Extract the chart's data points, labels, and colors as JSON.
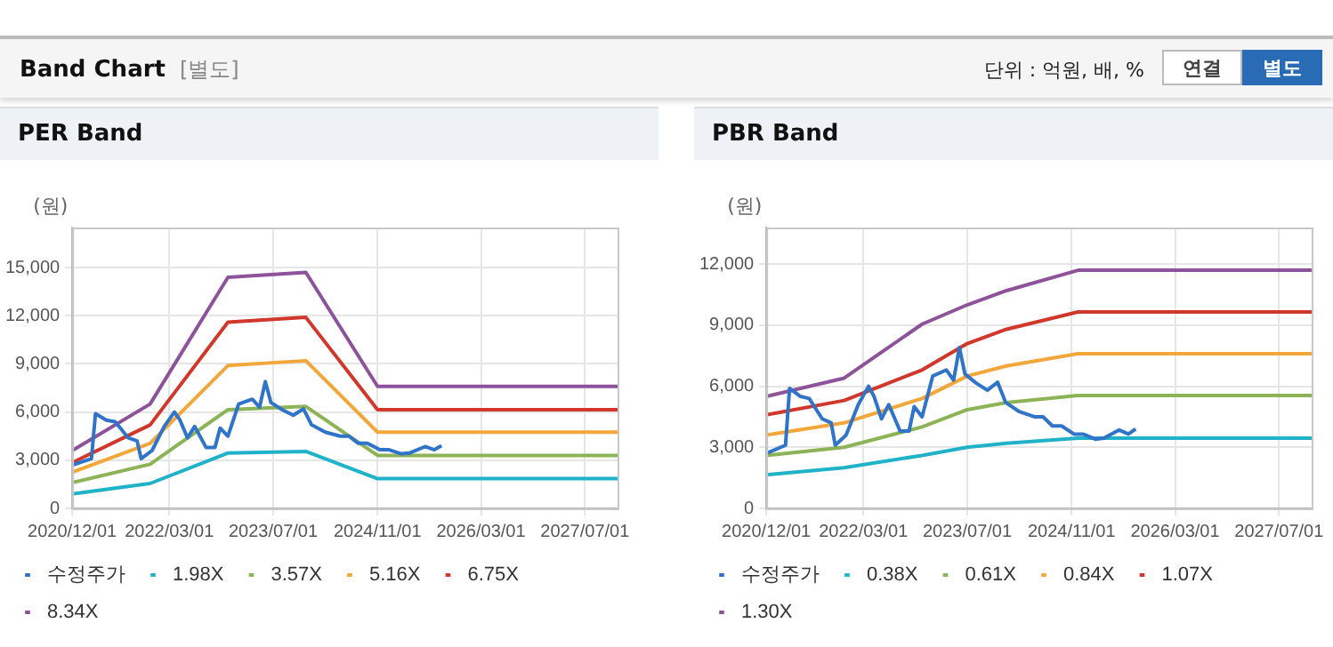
{
  "chart_data": [
    {
      "type": "other",
      "title": "Band Chart",
      "subtitle": "[별도]",
      "annotations": [
        "단위 : 억원, 배, %",
        "연결",
        "별도"
      ]
    },
    {
      "type": "line",
      "title": "PER Band",
      "ylabel": "(원)",
      "xlim": [
        "2020-12-01",
        "2027-12-01"
      ],
      "xticks": [
        {
          "value": "2020-12-01",
          "label": "2020/12/01"
        },
        {
          "value": "2022-03-01",
          "label": "2022/03/01"
        },
        {
          "value": "2023-07-01",
          "label": "2023/07/01"
        },
        {
          "value": "2024-11-01",
          "label": "2024/11/01"
        },
        {
          "value": "2026-03-01",
          "label": "2026/03/01"
        },
        {
          "value": "2027-07-01",
          "label": "2027/07/01"
        }
      ],
      "ylim": [
        0,
        17500
      ],
      "yticks": [
        {
          "value": 0,
          "label": "0"
        },
        {
          "value": 3000,
          "label": "3,000"
        },
        {
          "value": 6000,
          "label": "6,000"
        },
        {
          "value": 9000,
          "label": "9,000"
        },
        {
          "value": 12000,
          "label": "12,000"
        },
        {
          "value": 15000,
          "label": "15,000"
        }
      ],
      "grid": true,
      "legend": "bottom",
      "marker": "none",
      "line_style": "solid",
      "series": [
        {
          "name": "수정주가",
          "color": "#2f74c8",
          "x": [
            "2020-12-01",
            "2021-03-01",
            "2021-03-20",
            "2021-05-10",
            "2021-06-20",
            "2021-08-20",
            "2021-10-01",
            "2021-10-20",
            "2021-12-10",
            "2022-02-05",
            "2022-03-25",
            "2022-04-20",
            "2022-05-25",
            "2022-06-28",
            "2022-08-20",
            "2022-10-01",
            "2022-10-25",
            "2022-12-01",
            "2023-01-20",
            "2023-03-25",
            "2023-04-28",
            "2023-05-25",
            "2023-06-20",
            "2023-08-12",
            "2023-10-03",
            "2023-11-20",
            "2023-12-28",
            "2024-03-01",
            "2024-05-10",
            "2024-06-20",
            "2024-08-03",
            "2024-09-15",
            "2024-11-12",
            "2024-12-25",
            "2025-02-20",
            "2025-04-01",
            "2025-06-12",
            "2025-07-25",
            "2025-08-28"
          ],
          "values": [
            2700,
            3100,
            5900,
            5500,
            5400,
            4400,
            4200,
            3100,
            3600,
            5100,
            6000,
            5500,
            4400,
            5100,
            3800,
            3800,
            5000,
            4500,
            6500,
            6800,
            6300,
            7900,
            6600,
            6150,
            5800,
            6200,
            5200,
            4750,
            4500,
            4500,
            4050,
            4050,
            3650,
            3650,
            3400,
            3450,
            3850,
            3650,
            3900
          ]
        },
        {
          "name": "1.98X",
          "color": "#1fb2c8",
          "x": [
            "2020-12-01",
            "2021-12-01",
            "2022-12-01",
            "2023-12-01",
            "2024-11-01",
            "2027-12-01"
          ],
          "values": [
            900,
            1550,
            3450,
            3550,
            1850,
            1850
          ]
        },
        {
          "name": "3.57X",
          "color": "#8cb356",
          "x": [
            "2020-12-01",
            "2021-12-01",
            "2022-12-01",
            "2023-12-01",
            "2024-11-01",
            "2027-12-01"
          ],
          "values": [
            1600,
            2750,
            6150,
            6350,
            3300,
            3300
          ]
        },
        {
          "name": "5.16X",
          "color": "#f3a73b",
          "x": [
            "2020-12-01",
            "2021-12-01",
            "2022-12-01",
            "2023-12-01",
            "2024-11-01",
            "2027-12-01"
          ],
          "values": [
            2250,
            4050,
            8900,
            9200,
            4750,
            4750
          ]
        },
        {
          "name": "6.75X",
          "color": "#d2372c",
          "x": [
            "2020-12-01",
            "2021-12-01",
            "2022-12-01",
            "2023-12-01",
            "2024-11-01",
            "2027-12-01"
          ],
          "values": [
            2850,
            5200,
            11600,
            11900,
            6150,
            6150
          ]
        },
        {
          "name": "8.34X",
          "color": "#8e529b",
          "x": [
            "2020-12-01",
            "2021-12-01",
            "2022-12-01",
            "2023-12-01",
            "2024-11-01",
            "2027-12-01"
          ],
          "values": [
            3600,
            6500,
            14400,
            14700,
            7600,
            7600
          ]
        }
      ]
    },
    {
      "type": "line",
      "title": "PBR Band",
      "ylabel": "(원)",
      "xlim": [
        "2020-12-01",
        "2027-12-01"
      ],
      "xticks": [
        {
          "value": "2020-12-01",
          "label": "2020/12/01"
        },
        {
          "value": "2022-03-01",
          "label": "2022/03/01"
        },
        {
          "value": "2023-07-01",
          "label": "2023/07/01"
        },
        {
          "value": "2024-11-01",
          "label": "2024/11/01"
        },
        {
          "value": "2026-03-01",
          "label": "2026/03/01"
        },
        {
          "value": "2027-07-01",
          "label": "2027/07/01"
        }
      ],
      "ylim": [
        0,
        13800
      ],
      "yticks": [
        {
          "value": 0,
          "label": "0"
        },
        {
          "value": 3000,
          "label": "3,000"
        },
        {
          "value": 6000,
          "label": "6,000"
        },
        {
          "value": 9000,
          "label": "9,000"
        },
        {
          "value": 12000,
          "label": "12,000"
        }
      ],
      "grid": true,
      "legend": "bottom",
      "marker": "none",
      "line_style": "solid",
      "series": [
        {
          "name": "수정주가",
          "color": "#2f74c8",
          "x": [
            "2020-12-01",
            "2021-03-01",
            "2021-03-20",
            "2021-05-10",
            "2021-06-20",
            "2021-08-20",
            "2021-10-01",
            "2021-10-20",
            "2021-12-10",
            "2022-02-05",
            "2022-03-25",
            "2022-04-20",
            "2022-05-25",
            "2022-06-28",
            "2022-08-20",
            "2022-10-01",
            "2022-10-25",
            "2022-12-01",
            "2023-01-20",
            "2023-03-25",
            "2023-04-28",
            "2023-05-25",
            "2023-06-20",
            "2023-08-12",
            "2023-10-03",
            "2023-11-20",
            "2023-12-28",
            "2024-03-01",
            "2024-05-10",
            "2024-06-20",
            "2024-08-03",
            "2024-09-15",
            "2024-11-12",
            "2024-12-25",
            "2025-02-20",
            "2025-04-01",
            "2025-06-12",
            "2025-07-25",
            "2025-08-28"
          ],
          "values": [
            2700,
            3100,
            5900,
            5500,
            5400,
            4400,
            4200,
            3100,
            3600,
            5100,
            6000,
            5500,
            4400,
            5100,
            3800,
            3800,
            5000,
            4500,
            6500,
            6800,
            6300,
            7900,
            6600,
            6150,
            5800,
            6200,
            5200,
            4750,
            4500,
            4500,
            4050,
            4050,
            3650,
            3650,
            3400,
            3450,
            3850,
            3650,
            3900
          ]
        },
        {
          "name": "0.38X",
          "color": "#1fb2c8",
          "x": [
            "2020-12-01",
            "2021-12-01",
            "2022-12-01",
            "2023-07-01",
            "2024-01-01",
            "2024-12-01",
            "2027-12-01"
          ],
          "values": [
            1650,
            2000,
            2600,
            3000,
            3200,
            3450,
            3450
          ]
        },
        {
          "name": "0.61X",
          "color": "#8cb356",
          "x": [
            "2020-12-01",
            "2021-12-01",
            "2022-12-01",
            "2023-07-01",
            "2024-01-01",
            "2024-12-01",
            "2027-12-01"
          ],
          "values": [
            2600,
            3000,
            4000,
            4850,
            5200,
            5550,
            5550
          ]
        },
        {
          "name": "0.84X",
          "color": "#f3a73b",
          "x": [
            "2020-12-01",
            "2021-12-01",
            "2022-12-01",
            "2023-07-01",
            "2024-01-01",
            "2024-12-01",
            "2027-12-01"
          ],
          "values": [
            3600,
            4200,
            5400,
            6500,
            7000,
            7600,
            7600
          ]
        },
        {
          "name": "1.07X",
          "color": "#d2372c",
          "x": [
            "2020-12-01",
            "2021-12-01",
            "2022-12-01",
            "2023-07-01",
            "2024-01-01",
            "2024-12-01",
            "2027-12-01"
          ],
          "values": [
            4600,
            5300,
            6800,
            8100,
            8800,
            9650,
            9650
          ]
        },
        {
          "name": "1.30X",
          "color": "#8e529b",
          "x": [
            "2020-12-01",
            "2021-12-01",
            "2022-12-01",
            "2023-07-01",
            "2024-01-01",
            "2024-12-01",
            "2027-12-01"
          ],
          "values": [
            5500,
            6400,
            9050,
            10000,
            10700,
            11700,
            11700
          ]
        }
      ]
    }
  ]
}
